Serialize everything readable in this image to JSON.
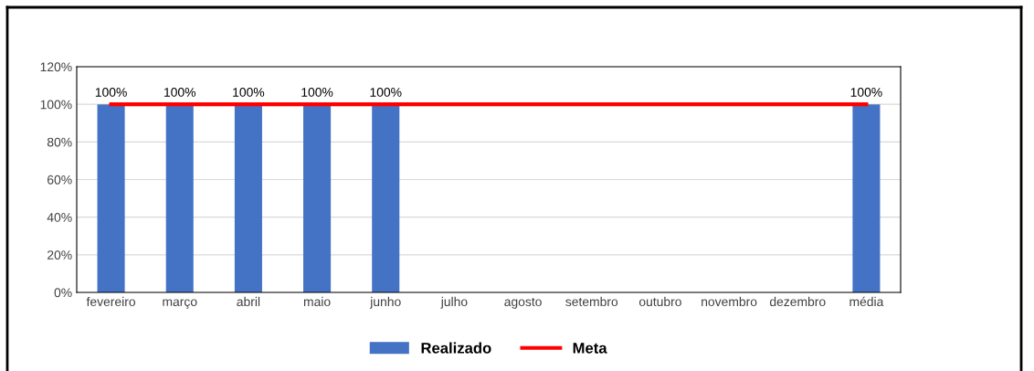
{
  "chart_data": {
    "type": "bar",
    "categories": [
      "fevereiro",
      "março",
      "abril",
      "maio",
      "junho",
      "julho",
      "agosto",
      "setembro",
      "outubro",
      "novembro",
      "dezembro",
      "média"
    ],
    "series": [
      {
        "name": "Realizado",
        "color": "#4472c4",
        "values": [
          100,
          100,
          100,
          100,
          100,
          null,
          null,
          null,
          null,
          null,
          null,
          100
        ],
        "value_labels": [
          "100%",
          "100%",
          "100%",
          "100%",
          "100%",
          null,
          null,
          null,
          null,
          null,
          null,
          "100%"
        ]
      },
      {
        "name": "Meta",
        "type": "line",
        "color": "#ff0000",
        "values": [
          100,
          100,
          100,
          100,
          100,
          100,
          100,
          100,
          100,
          100,
          100,
          100
        ]
      }
    ],
    "ylim": [
      0,
      120
    ],
    "yticks": [
      {
        "value": 0,
        "label": "0%"
      },
      {
        "value": 20,
        "label": "20%"
      },
      {
        "value": 40,
        "label": "40%"
      },
      {
        "value": 60,
        "label": "60%"
      },
      {
        "value": 80,
        "label": "80%"
      },
      {
        "value": 100,
        "label": "100%"
      },
      {
        "value": 120,
        "label": "120%"
      }
    ],
    "grid": "y",
    "legend": "bottom"
  }
}
